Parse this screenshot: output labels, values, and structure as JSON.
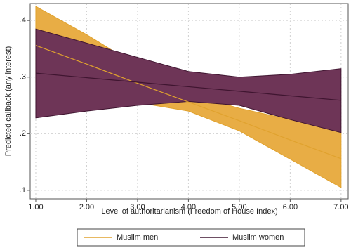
{
  "chart_data": {
    "type": "line",
    "x_label": "Level of authoritarianism (Freedom of House Index)",
    "y_label": "Predicted callback (any interest)",
    "x": [
      1,
      2,
      3,
      4,
      5,
      6,
      7
    ],
    "xlim": [
      0.89,
      7.14
    ],
    "ylim": [
      0.085,
      0.43
    ],
    "xticks": [
      {
        "value": 1,
        "label": "1.00"
      },
      {
        "value": 2,
        "label": "2.00"
      },
      {
        "value": 3,
        "label": "3.00"
      },
      {
        "value": 4,
        "label": "4.00"
      },
      {
        "value": 5,
        "label": "5.00"
      },
      {
        "value": 6,
        "label": "6.00"
      },
      {
        "value": 7,
        "label": "7.00"
      }
    ],
    "yticks": [
      {
        "value": 0.1,
        "label": ".1"
      },
      {
        "value": 0.2,
        "label": ".2"
      },
      {
        "value": 0.3,
        "label": ".3"
      },
      {
        "value": 0.4,
        "label": ".4"
      }
    ],
    "grid": true,
    "legend": "bottom",
    "series": [
      {
        "name": "Muslim men",
        "color": "#e0a22e",
        "fill": "#e8ad45",
        "values": [
          0.356,
          0.323,
          0.289,
          0.256,
          0.223,
          0.189,
          0.156
        ],
        "upper": [
          0.425,
          0.375,
          0.32,
          0.27,
          0.245,
          0.225,
          0.203
        ],
        "lower": [
          0.29,
          0.27,
          0.255,
          0.24,
          0.205,
          0.155,
          0.105
        ]
      },
      {
        "name": "Muslim women",
        "color": "#3f1530",
        "fill": "#6e3557",
        "values": [
          0.307,
          0.299,
          0.291,
          0.283,
          0.275,
          0.267,
          0.259
        ],
        "upper": [
          0.385,
          0.36,
          0.335,
          0.31,
          0.3,
          0.305,
          0.315
        ],
        "lower": [
          0.228,
          0.24,
          0.25,
          0.257,
          0.25,
          0.225,
          0.202
        ]
      }
    ]
  }
}
